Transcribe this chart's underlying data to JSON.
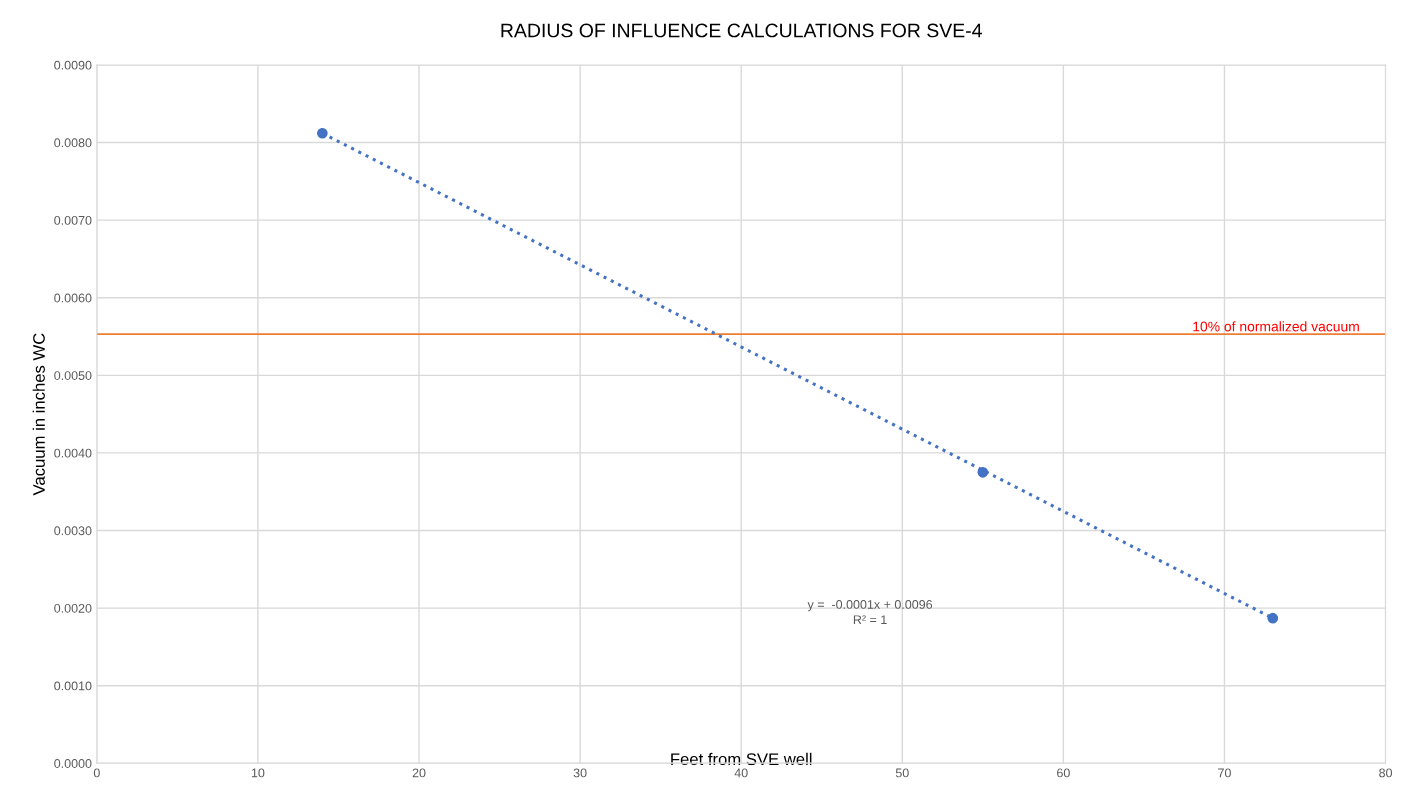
{
  "chart_data": {
    "type": "scatter",
    "title": "RADIUS OF INFLUENCE CALCULATIONS FOR SVE-4",
    "xlabel": "Feet from SVE well",
    "ylabel": "Vacuum in inches WC",
    "series": [
      {
        "color": "#4472c4",
        "x": [
          14,
          55,
          73
        ],
        "values": [
          0.00812,
          0.00375,
          0.00187
        ],
        "marker": "circle"
      },
      {
        "type": "line",
        "color": "#4472c4",
        "x": [
          14,
          73
        ],
        "values": [
          0.00812,
          0.00187
        ],
        "line_style": "dotted",
        "marker": "none"
      }
    ],
    "xlim": [
      0,
      80
    ],
    "xticks": [
      0,
      10,
      20,
      30,
      40,
      50,
      60,
      70,
      80
    ],
    "ylim": [
      0,
      0.009
    ],
    "yticks": [
      {
        "value": 0,
        "label": "0.0000"
      },
      {
        "value": 0.001,
        "label": "0.0010"
      },
      {
        "value": 0.002,
        "label": "0.0020"
      },
      {
        "value": 0.003,
        "label": "0.0030"
      },
      {
        "value": 0.004,
        "label": "0.0040"
      },
      {
        "value": 0.005,
        "label": "0.0050"
      },
      {
        "value": 0.006,
        "label": "0.0060"
      },
      {
        "value": 0.007,
        "label": "0.0070"
      },
      {
        "value": 0.008,
        "label": "0.0080"
      },
      {
        "value": 0.009,
        "label": "0.0090"
      }
    ],
    "ref_lines": [
      {
        "axis": "y",
        "value": 0.00553,
        "label": "10% of normalized vacuum",
        "color": "#ed7d31",
        "line_style": "solid"
      }
    ],
    "annotations": [
      "y =  -0.0001x + 0.0096\nR² = 1"
    ],
    "grid": true,
    "legend": false
  }
}
